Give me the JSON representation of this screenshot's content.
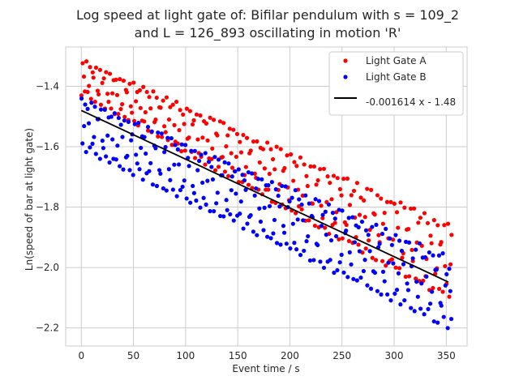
{
  "chart_data": {
    "type": "scatter",
    "title_lines": [
      "Log speed at light gate of: Bifilar pendulum with s = 109_2",
      "and L = 126_893 oscillating in motion 'R'"
    ],
    "xlabel": "Event time / s",
    "ylabel": "Ln(speed of bar at light gate)",
    "xlim": [
      -15,
      370
    ],
    "ylim": [
      -2.26,
      -1.27
    ],
    "xticks": [
      0,
      50,
      100,
      150,
      200,
      250,
      300,
      350
    ],
    "yticks": [
      -2.2,
      -2.0,
      -1.8,
      -1.6,
      -1.4
    ],
    "ytick_labels": [
      "−2.2",
      "−2.0",
      "−1.8",
      "−1.6",
      "−1.4"
    ],
    "grid": true,
    "legend_position": "top-right",
    "series": [
      {
        "name": "Light Gate A",
        "color": "#ff0000",
        "marker": "circle",
        "generator": {
          "t_start": 0,
          "t_end": 355,
          "count": 300,
          "upper_intercept": -1.31,
          "lower_intercept": -1.43,
          "upper_slope": -0.00155,
          "lower_slope": -0.00193
        }
      },
      {
        "name": "Light Gate B",
        "color": "#0000ff",
        "marker": "circle",
        "generator": {
          "t_start": 0,
          "t_end": 355,
          "count": 300,
          "upper_intercept": -1.44,
          "lower_intercept": -1.61,
          "upper_slope": -0.00148,
          "lower_slope": -0.00168
        }
      }
    ],
    "fit_line": {
      "label": "-0.001614 x - 1.48",
      "slope": -0.001614,
      "intercept": -1.48,
      "x_range": [
        0,
        352
      ],
      "color": "#000000"
    }
  }
}
